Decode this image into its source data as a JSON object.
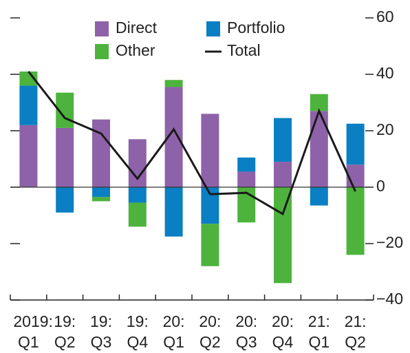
{
  "chart_data": {
    "type": "bar",
    "stacked": true,
    "categories": [
      "2019: Q1",
      "19: Q2",
      "19: Q3",
      "19: Q4",
      "20: Q1",
      "20: Q2",
      "20: Q3",
      "20: Q4",
      "21: Q1",
      "21: Q2"
    ],
    "series": [
      {
        "name": "Direct",
        "color": "#8e62a8",
        "values": [
          22,
          21,
          24,
          17,
          35.5,
          26,
          5.5,
          9,
          27,
          8
        ]
      },
      {
        "name": "Portfolio",
        "color": "#0a7fc3",
        "values": [
          14,
          -9,
          -3.5,
          -5.5,
          -17.5,
          -13,
          5,
          15.5,
          -6.5,
          14.5
        ]
      },
      {
        "name": "Other",
        "color": "#4db33d",
        "values": [
          5,
          12.5,
          -1.5,
          -8.5,
          2.5,
          -15,
          -12.5,
          -34,
          6,
          -24
        ]
      },
      {
        "name": "Total",
        "color": "#1a1a1a",
        "type": "line",
        "values": [
          41,
          24.5,
          19,
          3,
          20.5,
          -2.5,
          -2,
          -9.5,
          27,
          -1.5
        ]
      }
    ],
    "ylim": [
      -40,
      60
    ],
    "yticks": [
      60,
      40,
      20,
      0,
      {
        "value": -20,
        "label": "−20"
      },
      {
        "value": -40,
        "label": "−40"
      }
    ]
  }
}
